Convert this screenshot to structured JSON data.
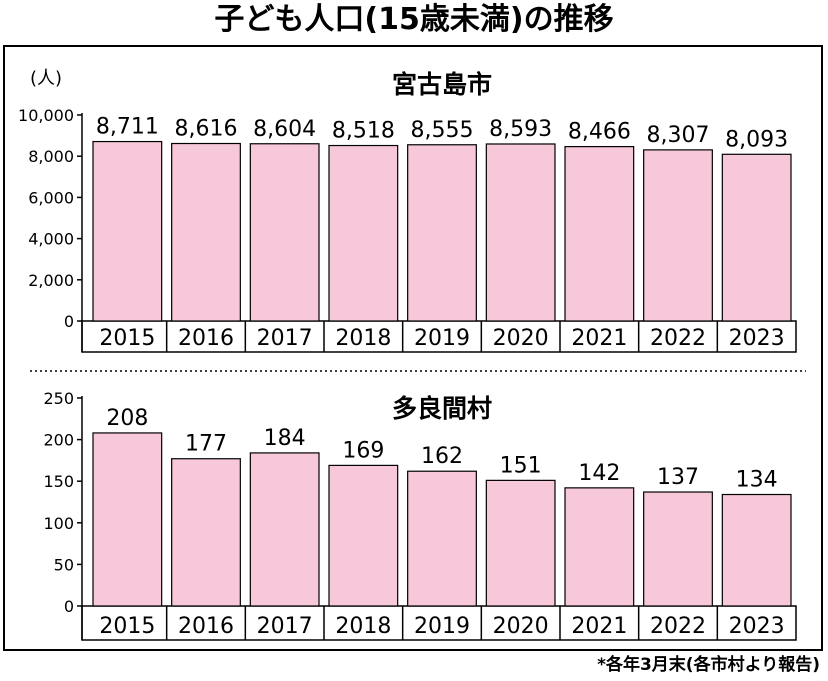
{
  "title": "子ども人口(15歳未満)の推移",
  "unit_label": "(人)",
  "footnote": "*各年3月末(各市村より報告)",
  "colors": {
    "bar": "#f7c8da",
    "bar_stroke": "#000000",
    "frame": "#000000"
  },
  "chart_data": [
    {
      "type": "bar",
      "title": "宮古島市",
      "categories": [
        "2015",
        "2016",
        "2017",
        "2018",
        "2019",
        "2020",
        "2021",
        "2022",
        "2023"
      ],
      "values": [
        8711,
        8616,
        8604,
        8518,
        8555,
        8593,
        8466,
        8307,
        8093
      ],
      "value_labels": [
        "8,711",
        "8,616",
        "8,604",
        "8,518",
        "8,555",
        "8,593",
        "8,466",
        "8,307",
        "8,093"
      ],
      "ylim": [
        0,
        10000
      ],
      "yticks": [
        0,
        2000,
        4000,
        6000,
        8000,
        10000
      ],
      "ytick_labels": [
        "0",
        "2,000",
        "4,000",
        "6,000",
        "8,000",
        "10,000"
      ],
      "grid": false
    },
    {
      "type": "bar",
      "title": "多良間村",
      "categories": [
        "2015",
        "2016",
        "2017",
        "2018",
        "2019",
        "2020",
        "2021",
        "2022",
        "2023"
      ],
      "values": [
        208,
        177,
        184,
        169,
        162,
        151,
        142,
        137,
        134
      ],
      "value_labels": [
        "208",
        "177",
        "184",
        "169",
        "162",
        "151",
        "142",
        "137",
        "134"
      ],
      "ylim": [
        0,
        250
      ],
      "yticks": [
        0,
        50,
        100,
        150,
        200,
        250
      ],
      "ytick_labels": [
        "0",
        "50",
        "100",
        "150",
        "200",
        "250"
      ],
      "grid": false
    }
  ]
}
